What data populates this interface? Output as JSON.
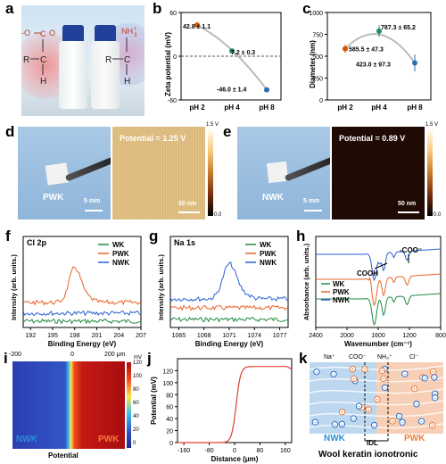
{
  "panel_letters": {
    "a": "a",
    "b": "b",
    "c": "c",
    "d": "d",
    "e": "e",
    "f": "f",
    "g": "g",
    "h": "h",
    "i": "i",
    "j": "j",
    "k": "k"
  },
  "panel_a": {
    "acid_group": {
      "neg_o": "-O",
      "c": "C",
      "o": "O",
      "r": "R",
      "ch": "C",
      "h": "H"
    },
    "base_group": {
      "nh3": "NH",
      "plus": "+",
      "sub3": "3",
      "r": "R",
      "c": "C",
      "h": "H"
    }
  },
  "panel_b": {
    "ylabel": "Zeta potential (mV)",
    "point_labels": [
      "42.8 ± 1.1",
      "7.2 ± 0.3",
      "-46.0 ± 1.4"
    ]
  },
  "panel_c": {
    "ylabel": "Diameter (nm)",
    "point_labels": [
      "585.5 ± 47.3",
      "787.3 ± 65.2",
      "423.0 ± 97.3"
    ]
  },
  "chart_data": [
    {
      "panel": "b",
      "type": "scatter",
      "categories": [
        "pH 2",
        "pH 4",
        "pH 8"
      ],
      "values": [
        42.8,
        7.2,
        -46.0
      ],
      "errors": [
        1.1,
        0.3,
        1.4
      ],
      "ylabel": "Zeta potential (mV)",
      "ylim": [
        -60,
        60
      ],
      "yticks": [
        -60,
        0,
        60
      ],
      "colors": [
        "#d35400",
        "#1e8a6e",
        "#2d6fb3"
      ],
      "reference_line": 0
    },
    {
      "panel": "c",
      "type": "scatter",
      "categories": [
        "pH 2",
        "pH 4",
        "pH 8"
      ],
      "values": [
        585.5,
        787.3,
        423.0
      ],
      "errors": [
        47.3,
        65.2,
        97.3
      ],
      "ylabel": "Diameter (nm)",
      "ylim": [
        0,
        1000
      ],
      "yticks": [
        0,
        250,
        500,
        750,
        1000
      ],
      "colors": [
        "#d35400",
        "#1e8a6e",
        "#2d6fb3"
      ]
    },
    {
      "panel": "f",
      "type": "line",
      "title": "Cl 2p",
      "xlabel": "Binding Energy (eV)",
      "ylabel": "Intensity (arb. units.)",
      "xlim": [
        191,
        207
      ],
      "xticks": [
        192,
        195,
        198,
        201,
        204,
        207
      ],
      "series": [
        {
          "name": "WK",
          "color": "#1e8a3e"
        },
        {
          "name": "PWK",
          "color": "#e8632a"
        },
        {
          "name": "NWK",
          "color": "#2a5fd6"
        }
      ]
    },
    {
      "panel": "g",
      "type": "line",
      "title": "Na 1s",
      "xlabel": "Binding Energy (eV)",
      "ylabel": "Intensity (arb. units.)",
      "xlim": [
        1064,
        1078
      ],
      "xticks": [
        1065,
        1068,
        1071,
        1074,
        1077
      ],
      "series": [
        {
          "name": "WK",
          "color": "#1e8a3e"
        },
        {
          "name": "PWK",
          "color": "#e8632a"
        },
        {
          "name": "NWK",
          "color": "#2a5fd6"
        }
      ]
    },
    {
      "panel": "h",
      "type": "line",
      "xlabel": "Wavenumber (cm⁻¹)",
      "ylabel": "Absorbance (arb. units.)",
      "xlim": [
        2400,
        800
      ],
      "xticks": [
        2400,
        2000,
        1600,
        1200,
        800
      ],
      "series": [
        {
          "name": "WK",
          "color": "#1e8a3e"
        },
        {
          "name": "PWK",
          "color": "#e8632a"
        },
        {
          "name": "NWK",
          "color": "#2a5fd6"
        }
      ]
    },
    {
      "panel": "i",
      "type": "heatmap",
      "xlabel": "Potential",
      "colorbar_unit": "mV",
      "colorbar_ticks": [
        0,
        20,
        40,
        60,
        80,
        100,
        120
      ],
      "xticks": [
        "-200",
        "0",
        "200 μm"
      ]
    },
    {
      "panel": "j",
      "type": "line",
      "xlabel": "Distance (μm)",
      "ylabel": "Potential (mV)",
      "xlim": [
        -180,
        180
      ],
      "xticks": [
        -160,
        -80,
        0,
        80,
        160
      ],
      "ylim": [
        0,
        140
      ],
      "yticks": [
        0,
        20,
        40,
        60,
        80,
        100,
        120
      ],
      "x": [
        -180,
        -120,
        -60,
        -20,
        0,
        10,
        20,
        40,
        80,
        120,
        160,
        175
      ],
      "y": [
        0,
        0,
        1,
        5,
        40,
        95,
        118,
        124,
        126,
        127,
        127,
        124
      ]
    }
  ],
  "panel_d": {
    "label": "PWK",
    "scale_left": "5 mm",
    "potential": "Potential = 1.25 V",
    "scale_right": "50 nm",
    "cb_top": "1.5 V",
    "cb_bottom": "0.0"
  },
  "panel_e": {
    "label": "NWK",
    "scale_left": "5 mm",
    "potential": "Potential = 0.89 V",
    "scale_right": "50 nm",
    "cb_top": "1.5 V",
    "cb_bottom": "0.0"
  },
  "panel_f": {
    "title": "Cl 2p",
    "xlabel": "Binding Energy (eV)",
    "ylabel": "Intensity (arb. units.)",
    "xticks": [
      "192",
      "195",
      "198",
      "201",
      "204",
      "207"
    ],
    "legend": [
      "WK",
      "PWK",
      "NWK"
    ]
  },
  "panel_g": {
    "title": "Na 1s",
    "xlabel": "Binding Energy (eV)",
    "ylabel": "Intensity (arb. units.)",
    "xticks": [
      "1065",
      "1068",
      "1071",
      "1074",
      "1077"
    ],
    "legend": [
      "WK",
      "PWK",
      "NWK"
    ]
  },
  "panel_h": {
    "xlabel": "Wavenumber (cm⁻¹)",
    "ylabel": "Absorbance (arb. units.)",
    "xticks": [
      "2400",
      "2000",
      "1600",
      "1200",
      "800"
    ],
    "legend": [
      "WK",
      "PWK",
      "NWK"
    ],
    "ann_coo": "-COO⁻",
    "ann_cooh": "COOH"
  },
  "panel_i": {
    "top_ticks": [
      "-200",
      "0",
      "200 μm"
    ],
    "unit": "mV",
    "cb_ticks": [
      "120",
      "100",
      "80",
      "60",
      "40",
      "20",
      "0"
    ],
    "left": "NWK",
    "right": "PWK",
    "xlabel": "Potential"
  },
  "panel_j": {
    "xlabel": "Distance (μm)",
    "ylabel": "Potential (mV)",
    "xticks": [
      "-160",
      "-80",
      "0",
      "80",
      "160"
    ],
    "yticks": [
      "0",
      "20",
      "40",
      "60",
      "80",
      "100",
      "120"
    ]
  },
  "panel_k": {
    "top_labels": [
      "Na⁺",
      "COO⁻",
      "NH₃⁺",
      "Cl⁻"
    ],
    "left": "NWK",
    "mid": "IDL",
    "right": "PWK",
    "caption": "Wool keratin ionotronic"
  }
}
